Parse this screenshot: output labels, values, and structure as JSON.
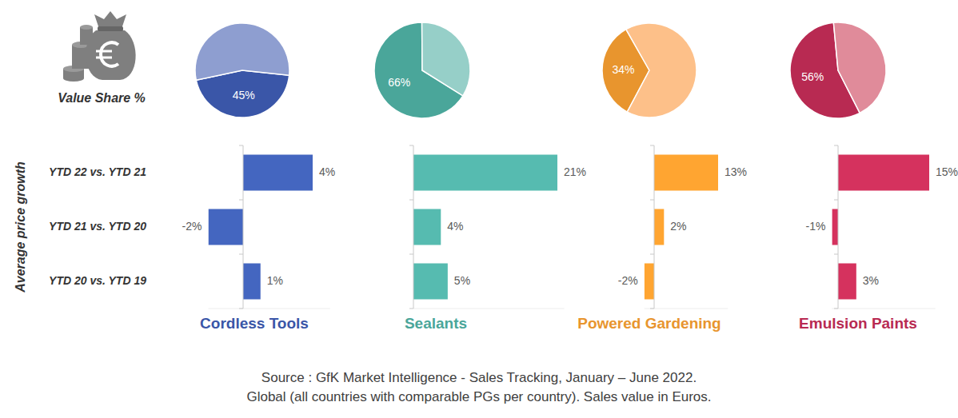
{
  "chart_data": [
    {
      "type": "pie",
      "title": "Value Share %",
      "values": [
        45,
        55
      ],
      "colors": [
        "#3a56a8",
        "#8e9ed0"
      ],
      "value_labels": [
        "45%",
        null
      ],
      "data_labels": true
    },
    {
      "type": "bar",
      "orientation": "horizontal",
      "title": "Cordless Tools",
      "y_label": "Average price growth",
      "categories": [
        "YTD 22 vs. YTD 21",
        "YTD 21 vs. YTD 20",
        "YTD 20 vs. YTD 19"
      ],
      "values": [
        4,
        -2,
        1
      ],
      "value_labels": [
        "4%",
        "-2%",
        "1%"
      ],
      "color": "#4466c0",
      "xlim": [
        -2,
        5
      ],
      "data_labels": true,
      "tick_labels": "y"
    },
    {
      "type": "pie",
      "values": [
        66,
        34
      ],
      "colors": [
        "#4aa69a",
        "#96cfc8"
      ],
      "value_labels": [
        "66%",
        null
      ],
      "data_labels": true
    },
    {
      "type": "bar",
      "orientation": "horizontal",
      "title": "Sealants",
      "categories": [
        null,
        null,
        null
      ],
      "values": [
        21,
        4,
        5
      ],
      "value_labels": [
        "21%",
        "4%",
        "5%"
      ],
      "color": "#56bbb0",
      "xlim": [
        0,
        22
      ],
      "data_labels": true,
      "tick_labels": false
    },
    {
      "type": "pie",
      "values": [
        34,
        66
      ],
      "colors": [
        "#e8952e",
        "#fdc089"
      ],
      "value_labels": [
        "34%",
        null
      ],
      "data_labels": true
    },
    {
      "type": "bar",
      "orientation": "horizontal",
      "title": "Powered Gardening",
      "categories": [
        null,
        null,
        null
      ],
      "values": [
        13,
        2,
        -2
      ],
      "value_labels": [
        "13%",
        "2%",
        "-2%"
      ],
      "color": "#ffa531",
      "xlim": [
        -2,
        15
      ],
      "data_labels": true,
      "tick_labels": false
    },
    {
      "type": "pie",
      "values": [
        56,
        44
      ],
      "colors": [
        "#b82a52",
        "#e08b9a"
      ],
      "value_labels": [
        "56%",
        null
      ],
      "data_labels": true
    },
    {
      "type": "bar",
      "orientation": "horizontal",
      "title": "Emulsion Paints",
      "categories": [
        null,
        null,
        null
      ],
      "values": [
        15,
        -1,
        3
      ],
      "value_labels": [
        "15%",
        "-1%",
        "3%"
      ],
      "color": "#d5325e",
      "xlim": [
        -1,
        16
      ],
      "data_labels": true,
      "tick_labels": false
    }
  ],
  "source": [
    "Source : GfK Market Intelligence - Sales Tracking, January – June 2022.",
    "Global (all countries with comparable PGs per country). Sales value in Euros."
  ]
}
